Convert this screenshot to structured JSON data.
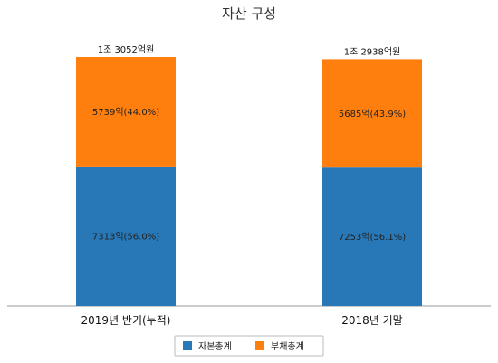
{
  "chart_data": {
    "type": "bar",
    "stacked": true,
    "title": "자산 구성",
    "categories": [
      "2019년 반기(누적)",
      "2018년 기말"
    ],
    "totals": [
      "1조 3052억원",
      "1조 2938억원"
    ],
    "series": [
      {
        "name": "자본총계",
        "color": "#2878b8",
        "values": [
          7313,
          7253
        ],
        "labels": [
          "7313억(56.0%)",
          "7253억(56.1%)"
        ]
      },
      {
        "name": "부채총계",
        "color": "#ff7f0e",
        "values": [
          5739,
          5685
        ],
        "labels": [
          "5739억(44.0%)",
          "5685억(43.9%)"
        ]
      }
    ],
    "ylim": [
      0,
      13052
    ],
    "legend_position": "bottom"
  }
}
